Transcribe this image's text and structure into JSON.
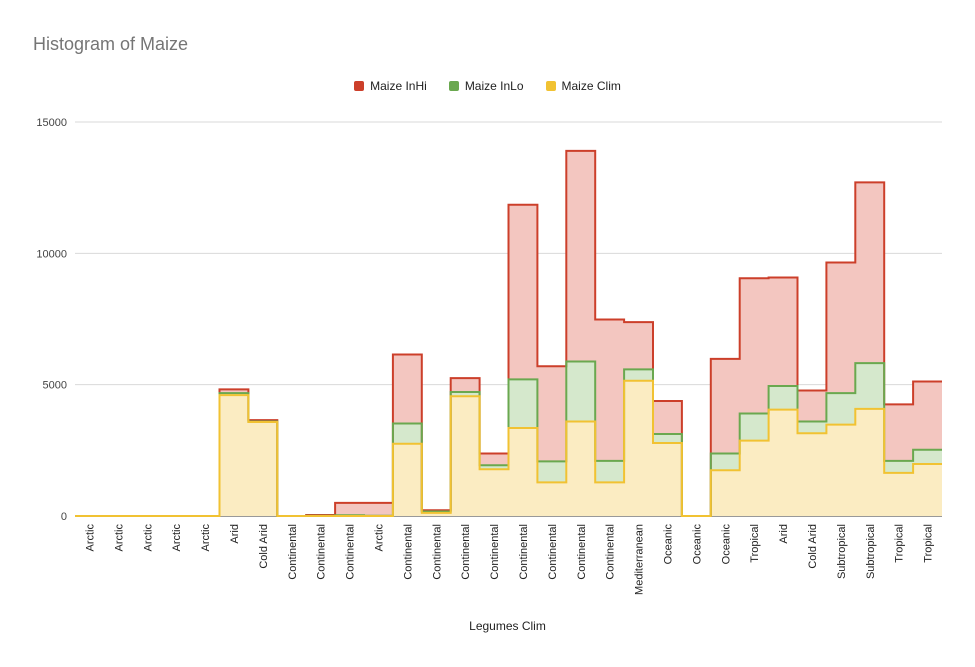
{
  "chart_data": {
    "type": "area",
    "step": true,
    "title": "Histogram of Maize",
    "xlabel": "Legumes Clim",
    "ylabel": "",
    "ylim": [
      0,
      15000
    ],
    "yticks": [
      0,
      5000,
      10000,
      15000
    ],
    "legend_position": "top",
    "grid": true,
    "categories": [
      "Arctic",
      "Arctic",
      "Arctic",
      "Arctic",
      "Arctic",
      "Arid",
      "Cold Arid",
      "Continental",
      "Continental",
      "Continental",
      "Arctic",
      "Continental",
      "Continental",
      "Continental",
      "Continental",
      "Continental",
      "Continental",
      "Continental",
      "Continental",
      "Mediterranean",
      "Oceanic",
      "Oceanic",
      "Oceanic",
      "Tropical",
      "Arid",
      "Cold Arid",
      "Subtropical",
      "Subtropical",
      "Tropical",
      "Tropical"
    ],
    "series": [
      {
        "name": "Maize InHi",
        "color": "#cc3f2a",
        "fill": "#f3c6c0",
        "values": [
          0,
          0,
          0,
          0,
          0,
          4820,
          3650,
          0,
          40,
          500,
          500,
          6150,
          220,
          5250,
          2380,
          11850,
          5700,
          13900,
          7480,
          7380,
          4380,
          0,
          5980,
          9050,
          9080,
          4780,
          9650,
          12700,
          4250,
          5120
        ]
      },
      {
        "name": "Maize InLo",
        "color": "#6aa84f",
        "fill": "#d5e8cc",
        "values": [
          0,
          0,
          0,
          0,
          0,
          4680,
          3600,
          0,
          10,
          30,
          10,
          3520,
          170,
          4720,
          1930,
          5200,
          2080,
          5880,
          2100,
          5580,
          3120,
          0,
          2380,
          3900,
          4950,
          3600,
          4680,
          5820,
          2100,
          2520
        ]
      },
      {
        "name": "Maize Clim",
        "color": "#f1c232",
        "fill": "#fbecc2",
        "values": [
          0,
          0,
          0,
          0,
          0,
          4600,
          3580,
          0,
          0,
          0,
          0,
          2750,
          120,
          4560,
          1780,
          3350,
          1280,
          3600,
          1280,
          5150,
          2780,
          0,
          1740,
          2870,
          4050,
          3150,
          3480,
          4080,
          1640,
          1980
        ]
      }
    ]
  }
}
